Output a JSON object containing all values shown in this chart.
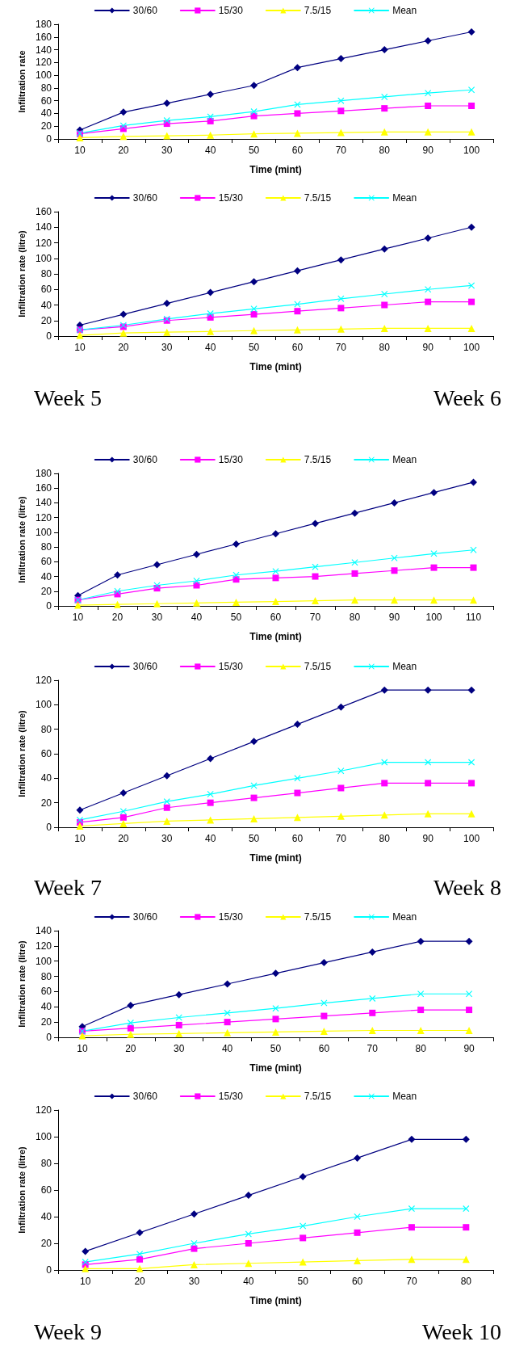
{
  "chart_data": [
    {
      "type": "line",
      "ylabel": "Infiltration rate",
      "xlabel": "Time (mint)",
      "categories": [
        "10",
        "20",
        "30",
        "40",
        "50",
        "60",
        "70",
        "80",
        "90",
        "100"
      ],
      "ylim": [
        0,
        180
      ],
      "yticks": [
        0,
        20,
        40,
        60,
        80,
        100,
        120,
        140,
        160,
        180
      ],
      "grid": false,
      "legend": "top",
      "series": [
        {
          "name": "30/60",
          "color": "#000080",
          "marker": "diamond",
          "values": [
            14,
            42,
            56,
            70,
            84,
            112,
            126,
            140,
            154,
            168
          ]
        },
        {
          "name": "15/30",
          "color": "#ff00ff",
          "marker": "square",
          "values": [
            8,
            16,
            24,
            28,
            36,
            40,
            44,
            48,
            52,
            52
          ]
        },
        {
          "name": "7.5/15",
          "color": "#ffff00",
          "marker": "triangle",
          "values": [
            2,
            4,
            5,
            6,
            8,
            9,
            10,
            11,
            11,
            11
          ]
        },
        {
          "name": "Mean",
          "color": "#00ffff",
          "marker": "cross",
          "values": [
            9,
            21,
            29,
            35,
            43,
            54,
            60,
            66,
            72,
            77
          ]
        }
      ]
    },
    {
      "type": "line",
      "ylabel": "Infiltration rate (litre)",
      "xlabel": "Time (mint)",
      "categories": [
        "10",
        "20",
        "30",
        "40",
        "50",
        "60",
        "70",
        "80",
        "90",
        "100"
      ],
      "ylim": [
        0,
        160
      ],
      "yticks": [
        0,
        20,
        40,
        60,
        80,
        100,
        120,
        140,
        160
      ],
      "grid": false,
      "legend": "top",
      "annotations": [
        "Week 5",
        "Week 6"
      ],
      "series": [
        {
          "name": "30/60",
          "color": "#000080",
          "marker": "diamond",
          "values": [
            14,
            28,
            42,
            56,
            70,
            84,
            98,
            112,
            126,
            140
          ]
        },
        {
          "name": "15/30",
          "color": "#ff00ff",
          "marker": "square",
          "values": [
            8,
            12,
            20,
            24,
            28,
            32,
            36,
            40,
            44,
            44
          ]
        },
        {
          "name": "7.5/15",
          "color": "#ffff00",
          "marker": "triangle",
          "values": [
            1,
            4,
            5,
            6,
            7,
            8,
            9,
            10,
            10,
            10
          ]
        },
        {
          "name": "Mean",
          "color": "#00ffff",
          "marker": "cross",
          "values": [
            8,
            14,
            22,
            29,
            35,
            41,
            48,
            54,
            60,
            65
          ]
        }
      ]
    },
    {
      "type": "line",
      "ylabel": "Infiltration rate (litre)",
      "xlabel": "Time (mint)",
      "categories": [
        "10",
        "20",
        "30",
        "40",
        "50",
        "60",
        "70",
        "80",
        "90",
        "100",
        "110"
      ],
      "ylim": [
        0,
        180
      ],
      "yticks": [
        0,
        20,
        40,
        60,
        80,
        100,
        120,
        140,
        160,
        180
      ],
      "grid": false,
      "legend": "top",
      "series": [
        {
          "name": "30/60",
          "color": "#000080",
          "marker": "diamond",
          "values": [
            14,
            42,
            56,
            70,
            84,
            98,
            112,
            126,
            140,
            154,
            168
          ]
        },
        {
          "name": "15/30",
          "color": "#ff00ff",
          "marker": "square",
          "values": [
            8,
            16,
            24,
            28,
            36,
            38,
            40,
            44,
            48,
            52,
            52
          ]
        },
        {
          "name": "7.5/15",
          "color": "#ffff00",
          "marker": "triangle",
          "values": [
            1,
            2,
            3,
            4,
            5,
            6,
            7,
            8,
            8,
            8,
            8
          ]
        },
        {
          "name": "Mean",
          "color": "#00ffff",
          "marker": "cross",
          "values": [
            8,
            20,
            28,
            34,
            42,
            47,
            53,
            59,
            65,
            71,
            76
          ]
        }
      ]
    },
    {
      "type": "line",
      "ylabel": "Infiltration rate (litre)",
      "xlabel": "Time (mint)",
      "categories": [
        "10",
        "20",
        "30",
        "40",
        "50",
        "60",
        "70",
        "80",
        "90",
        "100"
      ],
      "ylim": [
        0,
        120
      ],
      "yticks": [
        0,
        20,
        40,
        60,
        80,
        100,
        120
      ],
      "grid": false,
      "legend": "top",
      "annotations": [
        "Week 7",
        "Week 8"
      ],
      "series": [
        {
          "name": "30/60",
          "color": "#000080",
          "marker": "diamond",
          "values": [
            14,
            28,
            42,
            56,
            70,
            84,
            98,
            112,
            112,
            112
          ]
        },
        {
          "name": "15/30",
          "color": "#ff00ff",
          "marker": "square",
          "values": [
            4,
            8,
            16,
            20,
            24,
            28,
            32,
            36,
            36,
            36
          ]
        },
        {
          "name": "7.5/15",
          "color": "#ffff00",
          "marker": "triangle",
          "values": [
            1,
            3,
            5,
            6,
            7,
            8,
            9,
            10,
            11,
            11
          ]
        },
        {
          "name": "Mean",
          "color": "#00ffff",
          "marker": "cross",
          "values": [
            6,
            13,
            21,
            27,
            34,
            40,
            46,
            53,
            53,
            53
          ]
        }
      ]
    },
    {
      "type": "line",
      "ylabel": "Infiltration rate (litre)",
      "xlabel": "Time (mint)",
      "categories": [
        "10",
        "20",
        "30",
        "40",
        "50",
        "60",
        "70",
        "80",
        "90"
      ],
      "ylim": [
        0,
        140
      ],
      "yticks": [
        0,
        20,
        40,
        60,
        80,
        100,
        120,
        140
      ],
      "grid": false,
      "legend": "top",
      "series": [
        {
          "name": "30/60",
          "color": "#000080",
          "marker": "diamond",
          "values": [
            14,
            42,
            56,
            70,
            84,
            98,
            112,
            126,
            126
          ]
        },
        {
          "name": "15/30",
          "color": "#ff00ff",
          "marker": "square",
          "values": [
            8,
            12,
            16,
            20,
            24,
            28,
            32,
            36,
            36
          ]
        },
        {
          "name": "7.5/15",
          "color": "#ffff00",
          "marker": "triangle",
          "values": [
            2,
            4,
            5,
            6,
            7,
            8,
            9,
            9,
            9
          ]
        },
        {
          "name": "Mean",
          "color": "#00ffff",
          "marker": "cross",
          "values": [
            8,
            19,
            26,
            32,
            38,
            45,
            51,
            57,
            57
          ]
        }
      ]
    },
    {
      "type": "line",
      "ylabel": "Infiltration rate (litre)",
      "xlabel": "Time (mint)",
      "categories": [
        "10",
        "20",
        "30",
        "40",
        "50",
        "60",
        "70",
        "80"
      ],
      "ylim": [
        0,
        120
      ],
      "yticks": [
        0,
        20,
        40,
        60,
        80,
        100,
        120
      ],
      "grid": false,
      "legend": "top",
      "annotations": [
        "Week 9",
        "Week 10"
      ],
      "series": [
        {
          "name": "30/60",
          "color": "#000080",
          "marker": "diamond",
          "values": [
            14,
            28,
            42,
            56,
            70,
            84,
            98,
            98
          ]
        },
        {
          "name": "15/30",
          "color": "#ff00ff",
          "marker": "square",
          "values": [
            4,
            8,
            16,
            20,
            24,
            28,
            32,
            32
          ]
        },
        {
          "name": "7.5/15",
          "color": "#ffff00",
          "marker": "triangle",
          "values": [
            1,
            1,
            4,
            5,
            6,
            7,
            8,
            8
          ]
        },
        {
          "name": "Mean",
          "color": "#00ffff",
          "marker": "cross",
          "values": [
            6,
            12,
            20,
            27,
            33,
            40,
            46,
            46
          ]
        }
      ]
    }
  ]
}
